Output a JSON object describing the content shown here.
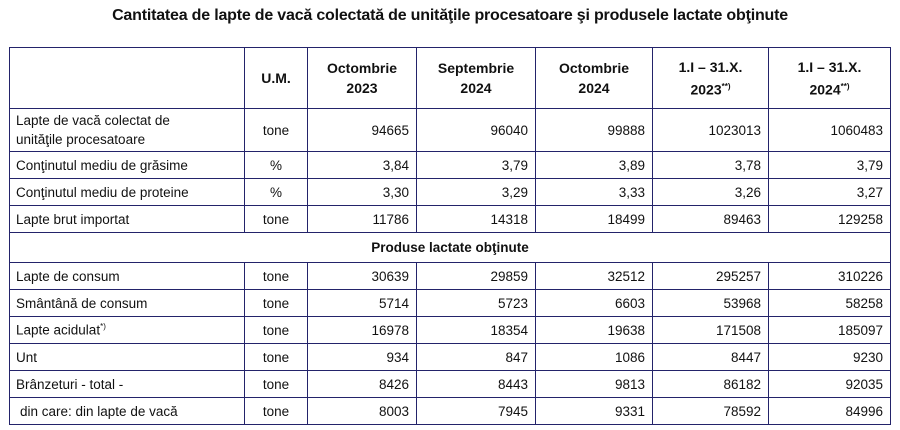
{
  "title": "Cantitatea de lapte de vacă colectată de unităţile procesatoare şi produsele lactate obţinute",
  "table": {
    "headers": [
      "",
      "U.M.",
      "Octombrie 2023",
      "Septembrie 2024",
      "Octombrie 2024",
      "1.I – 31.X. 2023",
      "1.I – 31.X. 2024"
    ],
    "header_lines": [
      {
        "l1": "Octombrie",
        "l2": "2023",
        "note": ""
      },
      {
        "l1": "Septembrie",
        "l2": "2024",
        "note": ""
      },
      {
        "l1": "Octombrie",
        "l2": "2024",
        "note": ""
      },
      {
        "l1": "1.I – 31.X.",
        "l2": "2023",
        "note": "**)"
      },
      {
        "l1": "1.I – 31.X.",
        "l2": "2024",
        "note": "**)"
      }
    ],
    "rows_a": [
      {
        "label": "Lapte de vacă colectat de unităţile procesatoare",
        "label_l1": "Lapte de vacă colectat de",
        "label_l2": "unităţile procesatoare",
        "um": "tone",
        "values": [
          "94665",
          "96040",
          "99888",
          "1023013",
          "1060483"
        ]
      },
      {
        "label": "Conţinutul mediu de grăsime",
        "um": "%",
        "values": [
          "3,84",
          "3,79",
          "3,89",
          "3,78",
          "3,79"
        ]
      },
      {
        "label": "Conţinutul mediu de proteine",
        "um": "%",
        "values": [
          "3,30",
          "3,29",
          "3,33",
          "3,26",
          "3,27"
        ]
      },
      {
        "label": "Lapte brut importat",
        "um": "tone",
        "values": [
          "11786",
          "14318",
          "18499",
          "89463",
          "129258"
        ]
      }
    ],
    "section": "Produse lactate obţinute",
    "rows_b": [
      {
        "label": "Lapte de consum",
        "note": "",
        "um": "tone",
        "values": [
          "30639",
          "29859",
          "32512",
          "295257",
          "310226"
        ]
      },
      {
        "label": "Smântână de consum",
        "note": "",
        "um": "tone",
        "values": [
          "5714",
          "5723",
          "6603",
          "53968",
          "58258"
        ]
      },
      {
        "label": "Lapte acidulat",
        "note": "*)",
        "um": "tone",
        "values": [
          "16978",
          "18354",
          "19638",
          "171508",
          "185097"
        ]
      },
      {
        "label": "Unt",
        "note": "",
        "um": "tone",
        "values": [
          "934",
          "847",
          "1086",
          "8447",
          "9230"
        ]
      },
      {
        "label": "Brânzeturi - total -",
        "note": "",
        "um": "tone",
        "values": [
          "8426",
          "8443",
          "9813",
          "86182",
          "92035"
        ]
      },
      {
        "label": "din care: din lapte de vacă",
        "note": "",
        "um": "tone",
        "values": [
          "8003",
          "7945",
          "9331",
          "78592",
          "84996"
        ]
      }
    ]
  }
}
